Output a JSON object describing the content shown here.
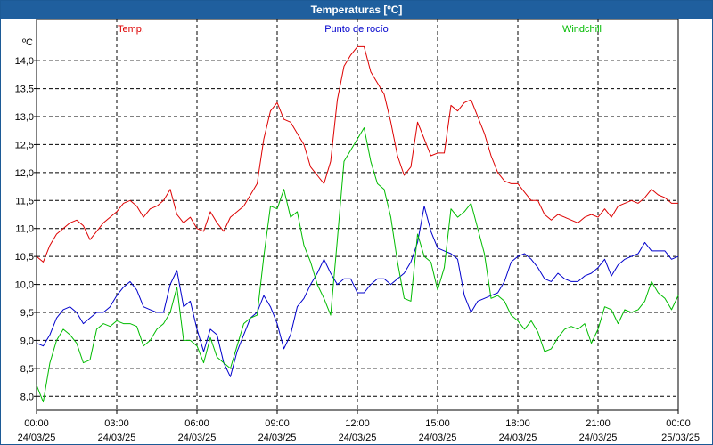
{
  "window": {
    "title": "Temperaturas [ºC]"
  },
  "chart_data": {
    "type": "line",
    "title": "Temperaturas [ºC]",
    "ylabel": "ºC",
    "xlabel": "",
    "ylim": [
      7.75,
      14.75
    ],
    "xlim": [
      0,
      24
    ],
    "grid": true,
    "y_ticks": [
      "8,0",
      "8,5",
      "9,0",
      "9,5",
      "10,0",
      "10,5",
      "11,0",
      "11,5",
      "12,0",
      "12,5",
      "13,0",
      "13,5",
      "14,0"
    ],
    "x_ticks": [
      {
        "time": "00:00",
        "date": "24/03/25"
      },
      {
        "time": "03:00",
        "date": "24/03/25"
      },
      {
        "time": "06:00",
        "date": "24/03/25"
      },
      {
        "time": "09:00",
        "date": "24/03/25"
      },
      {
        "time": "12:00",
        "date": "24/03/25"
      },
      {
        "time": "15:00",
        "date": "24/03/25"
      },
      {
        "time": "18:00",
        "date": "24/03/25"
      },
      {
        "time": "21:00",
        "date": "24/03/25"
      },
      {
        "time": "00:00",
        "date": "25/03/25"
      }
    ],
    "series": [
      {
        "name": "Temp.",
        "color": "#dd0000",
        "points": [
          [
            0,
            10.5
          ],
          [
            0.25,
            10.4
          ],
          [
            0.5,
            10.7
          ],
          [
            0.75,
            10.9
          ],
          [
            1,
            11
          ],
          [
            1.25,
            11.1
          ],
          [
            1.5,
            11.15
          ],
          [
            1.75,
            11.05
          ],
          [
            2,
            10.8
          ],
          [
            2.25,
            10.95
          ],
          [
            2.5,
            11.1
          ],
          [
            2.75,
            11.2
          ],
          [
            3,
            11.3
          ],
          [
            3.25,
            11.45
          ],
          [
            3.5,
            11.5
          ],
          [
            3.75,
            11.4
          ],
          [
            4,
            11.2
          ],
          [
            4.25,
            11.35
          ],
          [
            4.5,
            11.4
          ],
          [
            4.75,
            11.5
          ],
          [
            5,
            11.7
          ],
          [
            5.25,
            11.25
          ],
          [
            5.5,
            11.1
          ],
          [
            5.75,
            11.2
          ],
          [
            6,
            11.0
          ],
          [
            6.25,
            10.95
          ],
          [
            6.5,
            11.3
          ],
          [
            6.75,
            11.1
          ],
          [
            7,
            10.95
          ],
          [
            7.25,
            11.2
          ],
          [
            7.5,
            11.3
          ],
          [
            7.75,
            11.4
          ],
          [
            8,
            11.6
          ],
          [
            8.25,
            11.8
          ],
          [
            8.5,
            12.6
          ],
          [
            8.75,
            13.1
          ],
          [
            9,
            13.25
          ],
          [
            9.25,
            12.95
          ],
          [
            9.5,
            12.9
          ],
          [
            9.75,
            12.7
          ],
          [
            10,
            12.5
          ],
          [
            10.25,
            12.1
          ],
          [
            10.5,
            11.95
          ],
          [
            10.75,
            11.8
          ],
          [
            11,
            12.2
          ],
          [
            11.25,
            13.3
          ],
          [
            11.5,
            13.9
          ],
          [
            11.75,
            14.1
          ],
          [
            12,
            14.25
          ],
          [
            12.25,
            14.25
          ],
          [
            12.5,
            13.8
          ],
          [
            12.75,
            13.6
          ],
          [
            13,
            13.4
          ],
          [
            13.25,
            12.9
          ],
          [
            13.5,
            12.3
          ],
          [
            13.75,
            11.95
          ],
          [
            14,
            12.1
          ],
          [
            14.25,
            12.9
          ],
          [
            14.5,
            12.6
          ],
          [
            14.75,
            12.3
          ],
          [
            15,
            12.35
          ],
          [
            15.25,
            12.35
          ],
          [
            15.5,
            13.2
          ],
          [
            15.75,
            13.1
          ],
          [
            16,
            13.25
          ],
          [
            16.25,
            13.3
          ],
          [
            16.5,
            13.0
          ],
          [
            16.75,
            12.7
          ],
          [
            17,
            12.3
          ],
          [
            17.25,
            12.0
          ],
          [
            17.5,
            11.85
          ],
          [
            17.75,
            11.8
          ],
          [
            18,
            11.8
          ],
          [
            18.25,
            11.65
          ],
          [
            18.5,
            11.5
          ],
          [
            18.75,
            11.5
          ],
          [
            19,
            11.25
          ],
          [
            19.25,
            11.15
          ],
          [
            19.5,
            11.25
          ],
          [
            19.75,
            11.2
          ],
          [
            20,
            11.15
          ],
          [
            20.25,
            11.1
          ],
          [
            20.5,
            11.2
          ],
          [
            20.75,
            11.25
          ],
          [
            21,
            11.2
          ],
          [
            21.25,
            11.35
          ],
          [
            21.5,
            11.2
          ],
          [
            21.75,
            11.4
          ],
          [
            22,
            11.45
          ],
          [
            22.25,
            11.5
          ],
          [
            22.5,
            11.45
          ],
          [
            22.75,
            11.55
          ],
          [
            23,
            11.7
          ],
          [
            23.25,
            11.6
          ],
          [
            23.5,
            11.55
          ],
          [
            23.75,
            11.45
          ],
          [
            24,
            11.45
          ]
        ]
      },
      {
        "name": "Punto de rocío",
        "color": "#0000cc",
        "points": [
          [
            0,
            8.95
          ],
          [
            0.25,
            8.9
          ],
          [
            0.5,
            9.1
          ],
          [
            0.75,
            9.4
          ],
          [
            1,
            9.55
          ],
          [
            1.25,
            9.6
          ],
          [
            1.5,
            9.5
          ],
          [
            1.75,
            9.3
          ],
          [
            2,
            9.4
          ],
          [
            2.25,
            9.5
          ],
          [
            2.5,
            9.5
          ],
          [
            2.75,
            9.6
          ],
          [
            3,
            9.8
          ],
          [
            3.25,
            9.95
          ],
          [
            3.5,
            10.05
          ],
          [
            3.75,
            9.9
          ],
          [
            4,
            9.6
          ],
          [
            4.25,
            9.55
          ],
          [
            4.5,
            9.5
          ],
          [
            4.75,
            9.5
          ],
          [
            5,
            10.0
          ],
          [
            5.25,
            10.25
          ],
          [
            5.5,
            9.6
          ],
          [
            5.75,
            9.7
          ],
          [
            6,
            9.2
          ],
          [
            6.25,
            8.8
          ],
          [
            6.5,
            9.2
          ],
          [
            6.75,
            9.1
          ],
          [
            7,
            8.6
          ],
          [
            7.25,
            8.35
          ],
          [
            7.5,
            8.8
          ],
          [
            7.75,
            9.1
          ],
          [
            8,
            9.4
          ],
          [
            8.25,
            9.5
          ],
          [
            8.5,
            9.8
          ],
          [
            8.75,
            9.6
          ],
          [
            9,
            9.3
          ],
          [
            9.25,
            8.85
          ],
          [
            9.5,
            9.1
          ],
          [
            9.75,
            9.6
          ],
          [
            10,
            9.75
          ],
          [
            10.25,
            10.0
          ],
          [
            10.5,
            10.2
          ],
          [
            10.75,
            10.45
          ],
          [
            11,
            10.2
          ],
          [
            11.25,
            10.0
          ],
          [
            11.5,
            10.1
          ],
          [
            11.75,
            10.1
          ],
          [
            12,
            9.85
          ],
          [
            12.25,
            9.85
          ],
          [
            12.5,
            10.0
          ],
          [
            12.75,
            10.1
          ],
          [
            13,
            10.1
          ],
          [
            13.25,
            10.0
          ],
          [
            13.5,
            10.1
          ],
          [
            13.75,
            10.2
          ],
          [
            14,
            10.4
          ],
          [
            14.25,
            10.75
          ],
          [
            14.5,
            11.4
          ],
          [
            14.75,
            10.95
          ],
          [
            15,
            10.65
          ],
          [
            15.25,
            10.6
          ],
          [
            15.5,
            10.55
          ],
          [
            15.75,
            10.45
          ],
          [
            16,
            9.8
          ],
          [
            16.25,
            9.5
          ],
          [
            16.5,
            9.7
          ],
          [
            16.75,
            9.75
          ],
          [
            17,
            9.8
          ],
          [
            17.25,
            9.85
          ],
          [
            17.5,
            10.05
          ],
          [
            17.75,
            10.4
          ],
          [
            18,
            10.5
          ],
          [
            18.25,
            10.55
          ],
          [
            18.5,
            10.45
          ],
          [
            18.75,
            10.3
          ],
          [
            19,
            10.1
          ],
          [
            19.25,
            10.05
          ],
          [
            19.5,
            10.2
          ],
          [
            19.75,
            10.1
          ],
          [
            20,
            10.05
          ],
          [
            20.25,
            10.05
          ],
          [
            20.5,
            10.15
          ],
          [
            20.75,
            10.2
          ],
          [
            21,
            10.3
          ],
          [
            21.25,
            10.45
          ],
          [
            21.5,
            10.15
          ],
          [
            21.75,
            10.35
          ],
          [
            22,
            10.45
          ],
          [
            22.25,
            10.5
          ],
          [
            22.5,
            10.55
          ],
          [
            22.75,
            10.75
          ],
          [
            23,
            10.6
          ],
          [
            23.25,
            10.6
          ],
          [
            23.5,
            10.6
          ],
          [
            23.75,
            10.45
          ],
          [
            24,
            10.5
          ]
        ]
      },
      {
        "name": "Windchill",
        "color": "#00bb00",
        "points": [
          [
            0,
            8.2
          ],
          [
            0.25,
            7.9
          ],
          [
            0.5,
            8.6
          ],
          [
            0.75,
            9.0
          ],
          [
            1,
            9.2
          ],
          [
            1.25,
            9.1
          ],
          [
            1.5,
            8.95
          ],
          [
            1.75,
            8.6
          ],
          [
            2,
            8.65
          ],
          [
            2.25,
            9.2
          ],
          [
            2.5,
            9.3
          ],
          [
            2.75,
            9.25
          ],
          [
            3,
            9.35
          ],
          [
            3.25,
            9.3
          ],
          [
            3.5,
            9.3
          ],
          [
            3.75,
            9.25
          ],
          [
            4,
            8.9
          ],
          [
            4.25,
            9.0
          ],
          [
            4.5,
            9.2
          ],
          [
            4.75,
            9.3
          ],
          [
            5,
            9.5
          ],
          [
            5.25,
            9.95
          ],
          [
            5.5,
            9.0
          ],
          [
            5.75,
            9.0
          ],
          [
            6,
            8.9
          ],
          [
            6.25,
            8.6
          ],
          [
            6.5,
            9.05
          ],
          [
            6.75,
            8.7
          ],
          [
            7,
            8.6
          ],
          [
            7.25,
            8.5
          ],
          [
            7.5,
            8.9
          ],
          [
            7.75,
            9.3
          ],
          [
            8,
            9.4
          ],
          [
            8.25,
            9.45
          ],
          [
            8.5,
            10.5
          ],
          [
            8.75,
            11.4
          ],
          [
            9,
            11.35
          ],
          [
            9.25,
            11.7
          ],
          [
            9.5,
            11.2
          ],
          [
            9.75,
            11.3
          ],
          [
            10,
            10.7
          ],
          [
            10.25,
            10.4
          ],
          [
            10.5,
            10.0
          ],
          [
            10.75,
            9.75
          ],
          [
            11,
            9.45
          ],
          [
            11.25,
            10.8
          ],
          [
            11.5,
            12.2
          ],
          [
            11.75,
            12.4
          ],
          [
            12,
            12.6
          ],
          [
            12.25,
            12.8
          ],
          [
            12.5,
            12.2
          ],
          [
            12.75,
            11.8
          ],
          [
            13,
            11.7
          ],
          [
            13.25,
            11.2
          ],
          [
            13.5,
            10.4
          ],
          [
            13.75,
            9.75
          ],
          [
            14,
            9.7
          ],
          [
            14.25,
            10.9
          ],
          [
            14.5,
            10.5
          ],
          [
            14.75,
            10.4
          ],
          [
            15,
            9.9
          ],
          [
            15.25,
            10.3
          ],
          [
            15.5,
            11.35
          ],
          [
            15.75,
            11.2
          ],
          [
            16,
            11.3
          ],
          [
            16.25,
            11.45
          ],
          [
            16.5,
            11.0
          ],
          [
            16.75,
            10.55
          ],
          [
            17,
            9.75
          ],
          [
            17.25,
            9.8
          ],
          [
            17.5,
            9.7
          ],
          [
            17.75,
            9.45
          ],
          [
            18,
            9.35
          ],
          [
            18.25,
            9.2
          ],
          [
            18.5,
            9.35
          ],
          [
            18.75,
            9.15
          ],
          [
            19,
            8.8
          ],
          [
            19.25,
            8.85
          ],
          [
            19.5,
            9.05
          ],
          [
            19.75,
            9.2
          ],
          [
            20,
            9.25
          ],
          [
            20.25,
            9.2
          ],
          [
            20.5,
            9.3
          ],
          [
            20.75,
            8.95
          ],
          [
            21,
            9.2
          ],
          [
            21.25,
            9.6
          ],
          [
            21.5,
            9.55
          ],
          [
            21.75,
            9.3
          ],
          [
            22,
            9.55
          ],
          [
            22.25,
            9.5
          ],
          [
            22.5,
            9.55
          ],
          [
            22.75,
            9.7
          ],
          [
            23,
            10.05
          ],
          [
            23.25,
            9.85
          ],
          [
            23.5,
            9.75
          ],
          [
            23.75,
            9.55
          ],
          [
            24,
            9.8
          ]
        ]
      }
    ]
  }
}
